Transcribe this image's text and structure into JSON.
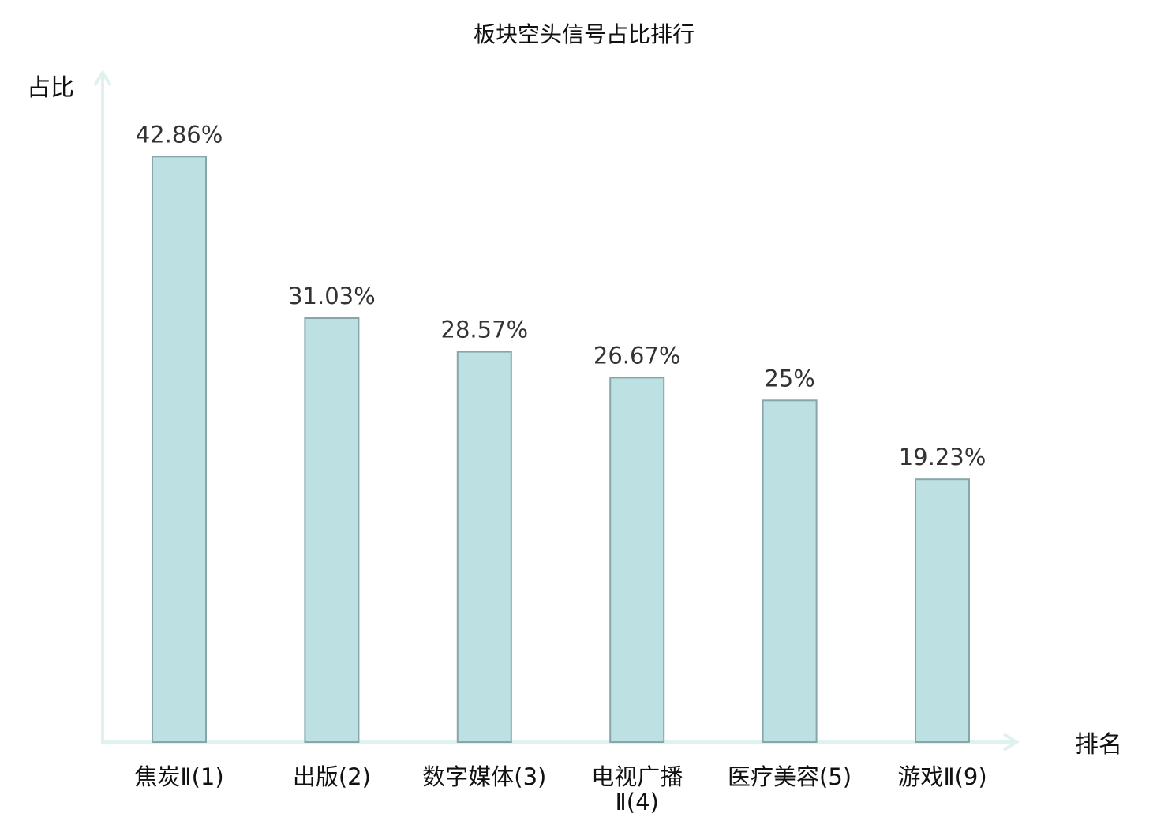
{
  "chart_data": {
    "type": "bar",
    "title": "板块空头信号占比排行",
    "xlabel": "排名",
    "ylabel": "占比",
    "categories": [
      [
        "焦炭Ⅱ(1)"
      ],
      [
        "出版(2)"
      ],
      [
        "数字媒体(3)"
      ],
      [
        "电视广播",
        "Ⅱ(4)"
      ],
      [
        "医疗美容(5)"
      ],
      [
        "游戏Ⅱ(9)"
      ]
    ],
    "values": [
      42.86,
      31.03,
      28.57,
      26.67,
      25,
      19.23
    ],
    "value_labels": [
      "42.86%",
      "31.03%",
      "28.57%",
      "26.67%",
      "25%",
      "19.23%"
    ],
    "highlight_index": 5,
    "ylim": [
      0,
      49
    ],
    "grid": false,
    "colors": {
      "bar_fill": "#bde0e3",
      "bar_stroke": "#86a6aa",
      "axis": "#e0f2ef",
      "highlight_text": "#e02020",
      "text": "#111111",
      "value_text": "#333333"
    }
  }
}
